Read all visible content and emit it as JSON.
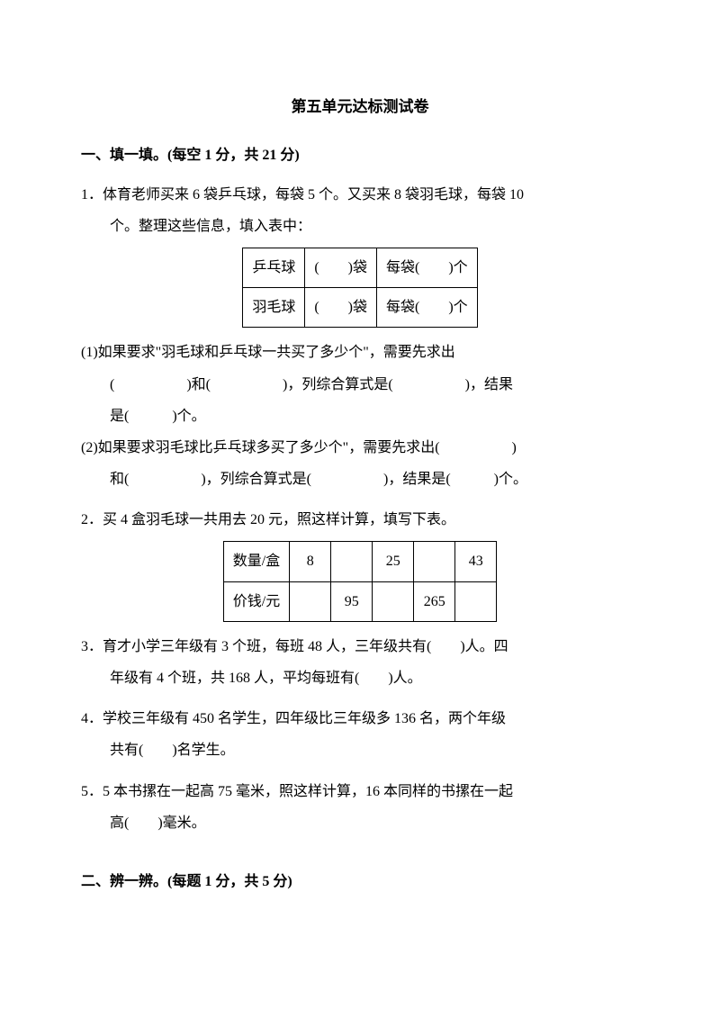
{
  "title": "第五单元达标测试卷",
  "section1": {
    "header": "一、填一填。(每空 1 分，共 21 分)",
    "q1": {
      "line1": "1．体育老师买来 6 袋乒乓球，每袋 5 个。又买来 8 袋羽毛球，每袋 10",
      "line2": "个。整理这些信息，填入表中：",
      "table": {
        "r1c1": "乒乓球",
        "r1c2": "(　　)袋",
        "r1c3": "每袋(　　)个",
        "r2c1": "羽毛球",
        "r2c2": "(　　)袋",
        "r2c3": "每袋(　　)个"
      },
      "sub1_line1": "(1)如果要求\"羽毛球和乒乓球一共买了多少个\"，需要先求出",
      "sub1_line2": "(　　　　　)和(　　　　　)，列综合算式是(　　　　　)，结果",
      "sub1_line3": "是(　　　)个。",
      "sub2_line1": "(2)如果要求羽毛球比乒乓球多买了多少个\"，需要先求出(　　　　　)",
      "sub2_line2": "和(　　　　　)，列综合算式是(　　　　　)，结果是(　　　)个。"
    },
    "q2": {
      "line1": "2．买 4 盒羽毛球一共用去 20 元，照这样计算，填写下表。",
      "table": {
        "h1": "数量/盒",
        "h2": "价钱/元",
        "r1c2": "8",
        "r1c3": "",
        "r1c4": "25",
        "r1c5": "",
        "r1c6": "43",
        "r2c2": "",
        "r2c3": "95",
        "r2c4": "",
        "r2c5": "265",
        "r2c6": ""
      }
    },
    "q3": {
      "line1": "3．育才小学三年级有 3 个班，每班 48 人，三年级共有(　　)人。四",
      "line2": "年级有 4 个班，共 168 人，平均每班有(　　)人。"
    },
    "q4": {
      "line1": "4．学校三年级有 450 名学生，四年级比三年级多 136 名，两个年级",
      "line2": "共有(　　)名学生。"
    },
    "q5": {
      "line1": "5．5 本书摞在一起高 75 毫米，照这样计算，16 本同样的书摞在一起",
      "line2": "高(　　)毫米。"
    }
  },
  "section2": {
    "header": "二、辨一辨。(每题 1 分，共 5 分)"
  }
}
